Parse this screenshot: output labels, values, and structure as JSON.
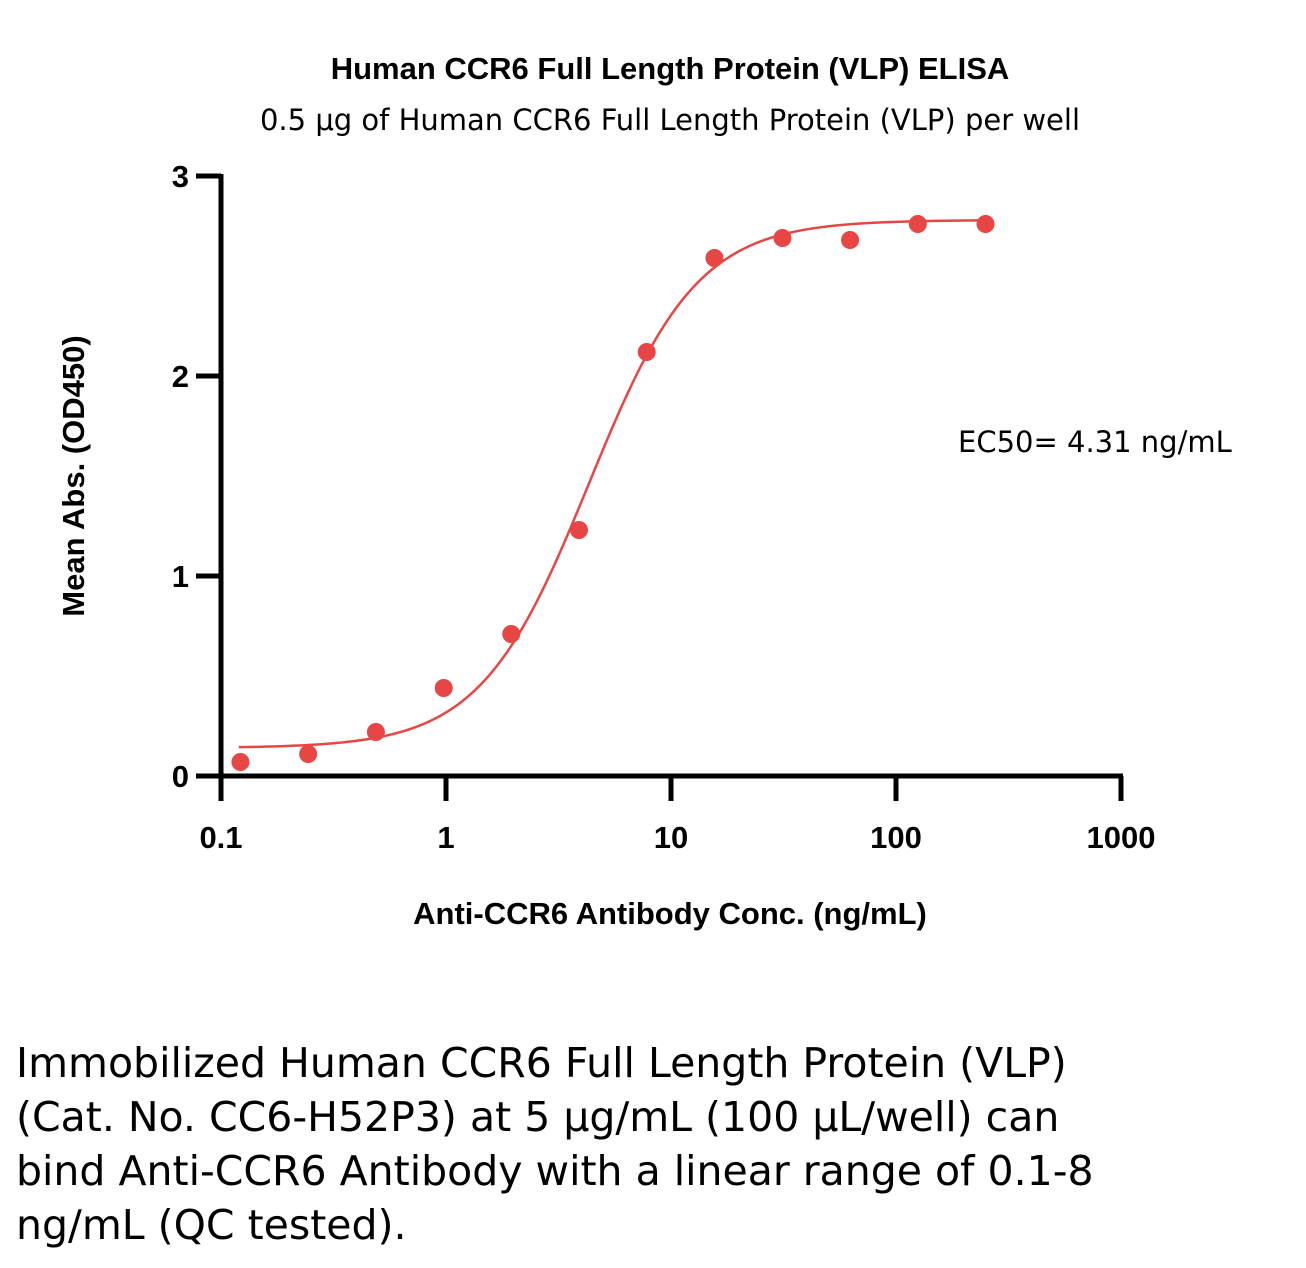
{
  "chart_data": {
    "type": "scatter",
    "title": "Human CCR6 Full Length Protein (VLP) ELISA",
    "subtitle": "0.5 μg of Human CCR6 Full Length Protein (VLP) per well",
    "xlabel": "Anti-CCR6 Antibody Conc. (ng/mL)",
    "ylabel": "Mean Abs. (OD450)",
    "x_scale": "log",
    "xlim": [
      0.1,
      1000
    ],
    "ylim": [
      0,
      3
    ],
    "x_ticks": [
      0.1,
      1,
      10,
      100,
      1000
    ],
    "x_tick_labels": [
      "0.1",
      "1",
      "10",
      "100",
      "1000"
    ],
    "y_ticks": [
      0,
      1,
      2,
      3
    ],
    "y_tick_labels": [
      "0",
      "1",
      "2",
      "3"
    ],
    "grid": false,
    "color": "#e84545",
    "series": [
      {
        "x": [
          0.122,
          0.244,
          0.488,
          0.977,
          1.95,
          3.9,
          7.8,
          15.6,
          31.3,
          62.5,
          125,
          250
        ],
        "y": [
          0.07,
          0.11,
          0.22,
          0.44,
          0.71,
          1.23,
          2.12,
          2.59,
          2.69,
          2.68,
          2.76,
          2.76
        ]
      }
    ],
    "fit": {
      "model": "4PL",
      "bottom": 0.14,
      "top": 2.78,
      "ec50": 4.31,
      "hill": 1.8,
      "x_range": [
        0.12,
        250
      ]
    },
    "annotation": "EC50= 4.31 ng/mL"
  },
  "caption": "Immobilized Human CCR6 Full Length Protein (VLP) (Cat. No. CC6-H52P3) at 5 μg/mL (100 μL/well) can bind Anti-CCR6 Antibody with a linear range of 0.1-8 ng/mL (QC tested)."
}
